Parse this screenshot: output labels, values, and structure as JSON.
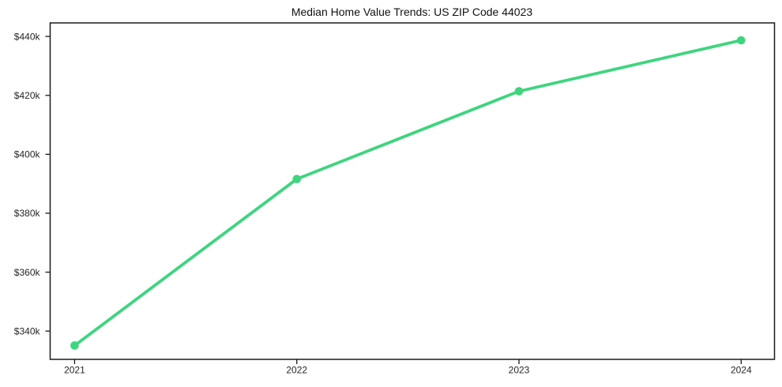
{
  "chart_data": {
    "type": "line",
    "title": "Median Home Value Trends: US ZIP Code 44023",
    "series": [
      {
        "name": "Median home value",
        "x": [
          2021,
          2022,
          2023,
          2024
        ],
        "values": [
          335100,
          391600,
          421400,
          438700
        ]
      }
    ],
    "xlabel": "",
    "ylabel": "",
    "x_tick_values": [
      2021,
      2022,
      2023,
      2024
    ],
    "x_tick_labels": [
      "2021",
      "2022",
      "2023",
      "2024"
    ],
    "y_tick_values": [
      340000,
      360000,
      380000,
      400000,
      420000,
      440000
    ],
    "y_tick_labels": [
      "$340k",
      "$360k",
      "$380k",
      "$400k",
      "$420k",
      "$440k"
    ],
    "xlim": [
      2020.89,
      2024.15
    ],
    "ylim": [
      330400,
      444600
    ],
    "grid": false,
    "legend": null,
    "line_color": "#3ed57e",
    "marker": "circle",
    "axis_color": "#1a1a1a",
    "tick_label_color": "#262626",
    "background_color": "#ffffff"
  }
}
